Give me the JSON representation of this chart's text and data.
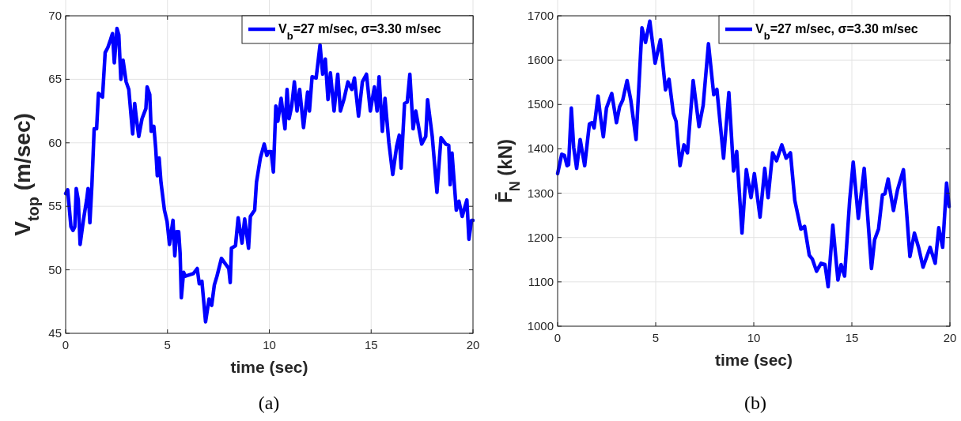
{
  "chart_data": [
    {
      "type": "line",
      "xlabel": "time (sec)",
      "ylabel": "V$_{top}$ (m/sec)",
      "annotations": [
        "(a)"
      ],
      "xlim": [
        0,
        20
      ],
      "xticks": [
        0,
        5,
        10,
        15,
        20
      ],
      "ylim": [
        45,
        70
      ],
      "yticks": [
        45,
        50,
        55,
        60,
        65,
        70
      ],
      "grid": true,
      "legend": "top right",
      "line_style": "solid",
      "series": [
        {
          "name": "V$_{b}$=27 m/sec, σ=3.30 m/sec",
          "color": "#0000ff",
          "x": [
            0,
            0.1,
            0.26,
            0.36,
            0.45,
            0.52,
            0.62,
            0.71,
            0.88,
            1.03,
            1.1,
            1.19,
            1.29,
            1.4,
            1.52,
            1.61,
            1.81,
            1.94,
            2.07,
            2.2,
            2.3,
            2.39,
            2.52,
            2.61,
            2.71,
            2.82,
            2.97,
            3.1,
            3.29,
            3.39,
            3.46,
            3.59,
            3.75,
            3.94,
            4.0,
            4.13,
            4.2,
            4.33,
            4.42,
            4.5,
            4.59,
            4.68,
            4.85,
            4.98,
            5.1,
            5.27,
            5.36,
            5.45,
            5.55,
            5.62,
            5.68,
            5.79,
            5.88,
            6.27,
            6.46,
            6.56,
            6.69,
            6.87,
            7.04,
            7.17,
            7.3,
            7.43,
            7.65,
            8.01,
            8.08,
            8.14,
            8.34,
            8.47,
            8.66,
            8.79,
            8.98,
            9.07,
            9.28,
            9.37,
            9.56,
            9.75,
            9.88,
            9.96,
            10.09,
            10.2,
            10.32,
            10.42,
            10.58,
            10.77,
            10.87,
            10.97,
            11.1,
            11.23,
            11.36,
            11.49,
            11.68,
            11.88,
            11.97,
            12.1,
            12.3,
            12.49,
            12.62,
            12.75,
            12.88,
            13.0,
            13.18,
            13.36,
            13.49,
            13.66,
            13.86,
            14.05,
            14.18,
            14.38,
            14.57,
            14.77,
            14.96,
            15.16,
            15.29,
            15.39,
            15.55,
            15.68,
            15.87,
            16.06,
            16.25,
            16.38,
            16.47,
            16.64,
            16.77,
            16.9,
            17.06,
            17.19,
            17.48,
            17.68,
            17.77,
            18.0,
            18.23,
            18.43,
            18.66,
            18.81,
            18.88,
            18.97,
            19.18,
            19.31,
            19.47,
            19.7,
            19.8,
            19.93,
            20.0
          ],
          "values": [
            56.0,
            56.3,
            53.4,
            53.1,
            53.4,
            56.4,
            55.5,
            52.0,
            54.0,
            55.5,
            56.4,
            53.7,
            56.7,
            61.1,
            61.1,
            63.9,
            63.6,
            67.1,
            67.5,
            68.1,
            68.6,
            66.3,
            69.0,
            68.5,
            65.0,
            66.5,
            64.8,
            64.2,
            60.7,
            63.1,
            62.1,
            60.5,
            61.9,
            62.7,
            64.4,
            63.8,
            60.9,
            61.3,
            59.6,
            57.4,
            58.8,
            56.9,
            54.7,
            53.8,
            52.0,
            53.9,
            51.1,
            53.0,
            53.0,
            51.3,
            47.8,
            49.8,
            49.5,
            49.7,
            50.1,
            48.9,
            49.1,
            45.9,
            47.7,
            47.2,
            48.8,
            49.5,
            50.9,
            50.1,
            49.0,
            51.7,
            51.9,
            54.1,
            52.1,
            54.0,
            51.7,
            54.2,
            54.7,
            56.9,
            58.8,
            59.9,
            59.0,
            59.3,
            59.3,
            57.7,
            62.9,
            61.7,
            63.5,
            61.1,
            64.2,
            61.9,
            62.9,
            64.8,
            62.5,
            64.2,
            61.2,
            64.0,
            62.5,
            65.2,
            65.1,
            67.7,
            65.4,
            66.6,
            63.4,
            65.5,
            62.5,
            65.4,
            62.5,
            63.4,
            64.8,
            64.2,
            65.1,
            62.1,
            64.8,
            65.4,
            62.5,
            64.4,
            62.5,
            65.2,
            60.9,
            63.5,
            60.0,
            57.5,
            59.7,
            60.6,
            58.0,
            63.1,
            63.2,
            65.4,
            61.1,
            62.5,
            59.9,
            60.5,
            63.4,
            60.5,
            56.1,
            60.4,
            59.9,
            59.8,
            56.7,
            59.2,
            54.7,
            55.4,
            54.2,
            55.5,
            52.4,
            53.9,
            53.9
          ]
        }
      ]
    },
    {
      "type": "line",
      "xlabel": "time (sec)",
      "ylabel": "F̄$_{N}$ (kN)",
      "annotations": [
        "(b)"
      ],
      "xlim": [
        0,
        20
      ],
      "xticks": [
        0,
        5,
        10,
        15,
        20
      ],
      "ylim": [
        1000,
        1700
      ],
      "yticks": [
        1000,
        1100,
        1200,
        1300,
        1400,
        1500,
        1600,
        1700
      ],
      "grid": true,
      "legend": "top right",
      "line_style": "solid",
      "series": [
        {
          "name": "V$_{b}$=27 m/sec, σ=3.30 m/sec",
          "color": "#0000ff",
          "x": [
            0,
            0.21,
            0.35,
            0.48,
            0.56,
            0.7,
            0.82,
            0.97,
            1.15,
            1.38,
            1.62,
            1.75,
            1.86,
            2.06,
            2.2,
            2.33,
            2.49,
            2.76,
            3.0,
            3.16,
            3.32,
            3.54,
            3.73,
            4.0,
            4.3,
            4.48,
            4.7,
            4.97,
            5.24,
            5.5,
            5.68,
            5.9,
            6.04,
            6.24,
            6.44,
            6.62,
            6.91,
            7.21,
            7.42,
            7.69,
            7.96,
            8.12,
            8.46,
            8.73,
            8.97,
            9.13,
            9.4,
            9.62,
            9.86,
            10.03,
            10.32,
            10.56,
            10.73,
            10.96,
            11.16,
            11.43,
            11.65,
            11.87,
            12.09,
            12.4,
            12.59,
            12.83,
            12.99,
            13.2,
            13.43,
            13.63,
            13.79,
            14.03,
            14.29,
            14.45,
            14.63,
            14.89,
            15.07,
            15.33,
            15.63,
            16.0,
            16.16,
            16.36,
            16.56,
            16.69,
            16.85,
            17.12,
            17.33,
            17.63,
            17.96,
            18.19,
            18.4,
            18.63,
            18.99,
            19.25,
            19.43,
            19.63,
            19.83,
            19.96
          ],
          "values": [
            1344,
            1388,
            1385,
            1362,
            1364,
            1492,
            1403,
            1356,
            1421,
            1362,
            1456,
            1459,
            1447,
            1519,
            1468,
            1427,
            1492,
            1525,
            1459,
            1495,
            1510,
            1554,
            1510,
            1421,
            1673,
            1640,
            1688,
            1593,
            1646,
            1533,
            1557,
            1480,
            1462,
            1362,
            1409,
            1391,
            1554,
            1450,
            1498,
            1637,
            1522,
            1534,
            1379,
            1527,
            1350,
            1394,
            1210,
            1353,
            1290,
            1344,
            1246,
            1356,
            1290,
            1391,
            1373,
            1409,
            1379,
            1391,
            1284,
            1219,
            1225,
            1160,
            1151,
            1124,
            1142,
            1139,
            1089,
            1228,
            1104,
            1139,
            1113,
            1284,
            1370,
            1243,
            1356,
            1130,
            1195,
            1219,
            1296,
            1299,
            1332,
            1261,
            1308,
            1353,
            1157,
            1210,
            1178,
            1133,
            1178,
            1142,
            1222,
            1178,
            1323,
            1270
          ]
        }
      ]
    }
  ]
}
